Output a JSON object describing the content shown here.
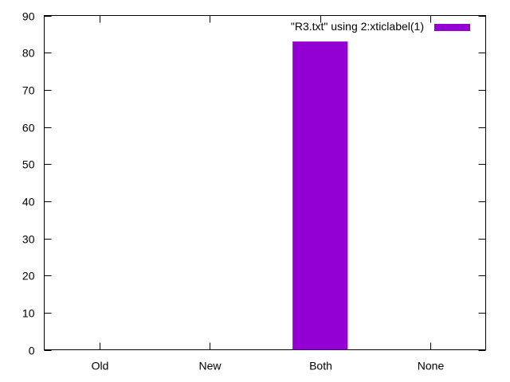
{
  "chart_data": {
    "type": "bar",
    "categories": [
      "Old",
      "New",
      "Both",
      "None"
    ],
    "series": [
      {
        "name": "\"R3.txt\" using 2:xticlabel(1)",
        "values": [
          0,
          0,
          83,
          0
        ],
        "color": "#9400d3"
      }
    ],
    "yticks": [
      0,
      10,
      20,
      30,
      40,
      50,
      60,
      70,
      80,
      90
    ],
    "ylim": [
      0,
      90
    ],
    "xlabel": "",
    "ylabel": "",
    "title": "",
    "grid": false,
    "legend_position": "top-right"
  }
}
